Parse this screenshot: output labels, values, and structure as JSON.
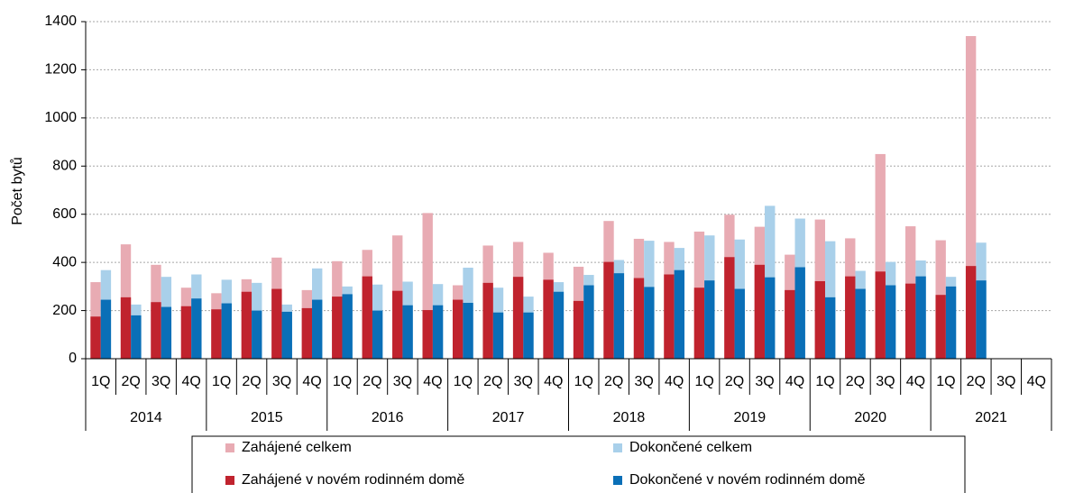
{
  "chart_data": {
    "type": "bar",
    "y_label": "Počet bytů",
    "categories": [
      "1Q",
      "2Q",
      "3Q",
      "4Q",
      "1Q",
      "2Q",
      "3Q",
      "4Q",
      "1Q",
      "2Q",
      "3Q",
      "4Q",
      "1Q",
      "2Q",
      "3Q",
      "4Q",
      "1Q",
      "2Q",
      "3Q",
      "4Q",
      "1Q",
      "2Q",
      "3Q",
      "4Q",
      "1Q",
      "2Q",
      "3Q",
      "4Q",
      "1Q",
      "2Q",
      "3Q",
      "4Q"
    ],
    "years": [
      "2014",
      "2015",
      "2016",
      "2017",
      "2018",
      "2019",
      "2020",
      "2021"
    ],
    "series": [
      {
        "name": "Zahájené celkem",
        "color": "#e8abb3",
        "values": [
          318,
          475,
          390,
          295,
          272,
          330,
          420,
          285,
          405,
          452,
          512,
          605,
          305,
          470,
          485,
          440,
          382,
          572,
          498,
          485,
          528,
          598,
          548,
          432,
          578,
          500,
          850,
          550,
          492,
          1340,
          null,
          null
        ]
      },
      {
        "name": "Dokončené celkem",
        "color": "#a9d0ea",
        "values": [
          368,
          225,
          340,
          350,
          328,
          315,
          225,
          375,
          300,
          308,
          320,
          310,
          378,
          295,
          258,
          318,
          348,
          410,
          490,
          460,
          512,
          495,
          635,
          582,
          488,
          365,
          402,
          408,
          340,
          482,
          null,
          null
        ]
      },
      {
        "name": "Zahájené v novém rodinném domě",
        "color": "#c0232e",
        "values": [
          175,
          255,
          235,
          218,
          205,
          278,
          290,
          210,
          258,
          342,
          282,
          202,
          245,
          315,
          340,
          328,
          240,
          402,
          335,
          350,
          295,
          422,
          390,
          285,
          322,
          342,
          362,
          312,
          265,
          385,
          null,
          null
        ]
      },
      {
        "name": "Dokončené v novém rodinném domě",
        "color": "#0a6fb7",
        "values": [
          245,
          180,
          215,
          250,
          230,
          200,
          195,
          245,
          268,
          200,
          222,
          222,
          232,
          192,
          192,
          278,
          305,
          355,
          298,
          368,
          325,
          290,
          338,
          380,
          255,
          290,
          305,
          342,
          300,
          325,
          null,
          null
        ]
      }
    ],
    "ylim": [
      0,
      1400
    ],
    "yticks": [
      0,
      200,
      400,
      600,
      800,
      1000,
      1200,
      1400
    ],
    "grid": true
  }
}
